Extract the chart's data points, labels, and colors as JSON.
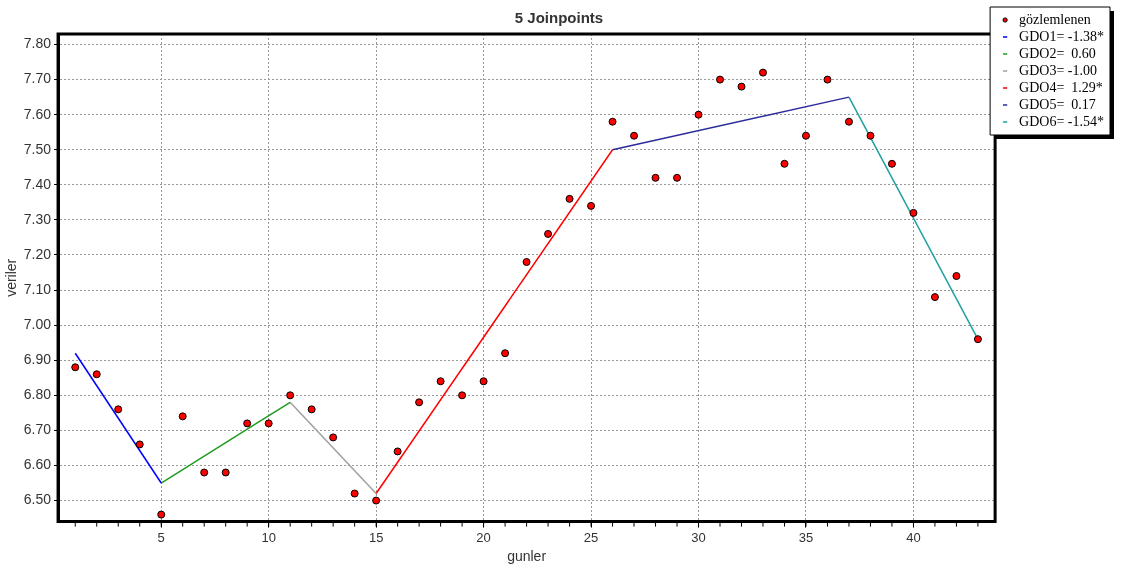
{
  "chart_data": {
    "type": "scatter",
    "title": "5 Joinpoints",
    "xlabel": "gunler",
    "ylabel": "veriler",
    "xlim": [
      0.2,
      43.8
    ],
    "xticks": [
      5,
      10,
      15,
      20,
      25,
      30,
      35,
      40
    ],
    "ylim": [
      6.44,
      7.83
    ],
    "yticks": [
      {
        "value": 6.5,
        "label": "6.50"
      },
      {
        "value": 6.6,
        "label": "6.60"
      },
      {
        "value": 6.7,
        "label": "6.70"
      },
      {
        "value": 6.8,
        "label": "6.80"
      },
      {
        "value": 6.9,
        "label": "6.90"
      },
      {
        "value": 7.0,
        "label": "7.00"
      },
      {
        "value": 7.1,
        "label": "7.10"
      },
      {
        "value": 7.2,
        "label": "7.20"
      },
      {
        "value": 7.3,
        "label": "7.30"
      },
      {
        "value": 7.4,
        "label": "7.40"
      },
      {
        "value": 7.5,
        "label": "7.50"
      },
      {
        "value": 7.6,
        "label": "7.60"
      },
      {
        "value": 7.7,
        "label": "7.70"
      },
      {
        "value": 7.8,
        "label": "7.80"
      }
    ],
    "grid": true,
    "legend": "top right",
    "marker": "circle",
    "line_style": "solid",
    "series": [
      {
        "name": "gözlemlenen",
        "color": "#ff0000",
        "x": [
          1,
          2,
          3,
          4,
          5,
          6,
          7,
          8,
          9,
          10,
          11,
          12,
          13,
          14,
          15,
          16,
          17,
          18,
          19,
          20,
          21,
          22,
          23,
          24,
          25,
          26,
          27,
          28,
          29,
          30,
          31,
          32,
          33,
          34,
          35,
          36,
          37,
          38,
          39,
          40,
          41,
          42,
          43
        ],
        "values": [
          6.88,
          6.86,
          6.76,
          6.66,
          6.46,
          6.74,
          6.58,
          6.58,
          6.72,
          6.72,
          6.8,
          6.76,
          6.68,
          6.52,
          6.5,
          6.64,
          6.78,
          6.84,
          6.8,
          6.84,
          6.92,
          7.18,
          7.26,
          7.36,
          7.34,
          7.58,
          7.54,
          7.42,
          7.42,
          7.6,
          7.7,
          7.68,
          7.72,
          7.46,
          7.54,
          7.7,
          7.58,
          7.54,
          7.46,
          7.32,
          7.08,
          7.14,
          6.96
        ]
      },
      {
        "name": "GDO1= -1.38*",
        "type": "line",
        "marker": "none",
        "color": "#0000ff",
        "x": [
          1,
          5
        ],
        "values": [
          6.92,
          6.55
        ]
      },
      {
        "name": "GDO2=  0.60",
        "type": "line",
        "marker": "none",
        "color": "#1f9a1f",
        "x": [
          5,
          11
        ],
        "values": [
          6.55,
          6.78
        ]
      },
      {
        "name": "GDO3= -1.00",
        "type": "line",
        "marker": "none",
        "color": "#a0a0a0",
        "x": [
          11,
          15
        ],
        "values": [
          6.78,
          6.52
        ]
      },
      {
        "name": "GDO4=  1.29*",
        "type": "line",
        "marker": "none",
        "color": "#ff0000",
        "x": [
          15,
          26
        ],
        "values": [
          6.52,
          7.5
        ]
      },
      {
        "name": "GDO5=  0.17",
        "type": "line",
        "marker": "none",
        "color": "#2a2a9a",
        "x": [
          26,
          37
        ],
        "values": [
          7.5,
          7.65
        ]
      },
      {
        "name": "GDO6= -1.54*",
        "type": "line",
        "marker": "none",
        "color": "#1fa0a0",
        "x": [
          37,
          43
        ],
        "values": [
          7.65,
          6.96
        ]
      }
    ]
  }
}
